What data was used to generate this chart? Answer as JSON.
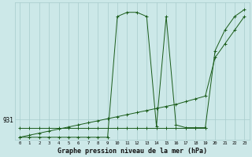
{
  "title": "Graphe pression niveau de la mer (hPa)",
  "background_color": "#cce8e8",
  "line_color": "#1a5c1a",
  "grid_color": "#a8cccc",
  "x_min": 0,
  "x_max": 23,
  "y_min": 929.5,
  "y_max": 939.5,
  "y_tick_val": 931,
  "y_tick_label": "931",
  "flat_x": [
    0,
    1,
    2,
    3,
    4,
    5,
    6,
    7,
    8,
    9,
    10,
    11,
    12,
    13,
    14,
    15,
    16,
    17,
    18,
    19
  ],
  "flat_y": [
    930.4,
    930.4,
    930.4,
    930.4,
    930.4,
    930.4,
    930.4,
    930.4,
    930.4,
    930.4,
    930.4,
    930.4,
    930.4,
    930.4,
    930.4,
    930.4,
    930.4,
    930.4,
    930.4,
    930.4
  ],
  "diag_x": [
    0,
    1,
    2,
    3,
    4,
    5,
    6,
    7,
    8,
    9,
    10,
    11,
    12,
    13,
    14,
    15,
    16,
    17,
    18,
    19,
    20,
    21,
    22,
    23
  ],
  "diag_y": [
    929.7,
    929.85,
    930.0,
    930.15,
    930.3,
    930.45,
    930.6,
    930.75,
    930.9,
    931.05,
    931.2,
    931.35,
    931.5,
    931.65,
    931.8,
    931.95,
    932.1,
    932.3,
    932.5,
    932.7,
    935.5,
    936.5,
    937.5,
    938.5
  ],
  "spike_x": [
    0,
    1,
    2,
    3,
    4,
    5,
    6,
    7,
    8,
    9,
    10,
    11,
    12,
    13,
    14,
    15,
    16,
    17,
    18,
    19,
    20,
    21,
    22,
    23
  ],
  "spike_y": [
    929.7,
    929.7,
    929.7,
    929.7,
    929.7,
    929.7,
    929.7,
    929.7,
    929.7,
    929.7,
    938.5,
    938.8,
    938.8,
    938.5,
    930.5,
    938.5,
    930.6,
    930.4,
    930.4,
    930.4,
    936.0,
    937.5,
    938.5,
    939.0
  ]
}
